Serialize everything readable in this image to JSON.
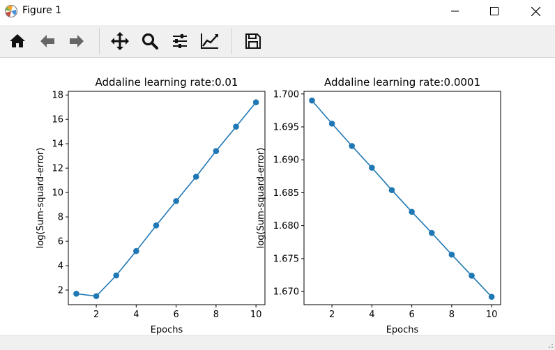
{
  "window": {
    "title": "Figure 1"
  },
  "toolbar": {
    "buttons": [
      {
        "name": "home-icon"
      },
      {
        "name": "back-icon"
      },
      {
        "name": "forward-icon"
      },
      {
        "name": "pan-icon"
      },
      {
        "name": "zoom-icon"
      },
      {
        "name": "subplots-icon"
      },
      {
        "name": "edit-axis-icon"
      },
      {
        "name": "save-icon"
      }
    ]
  },
  "colors": {
    "series": "#1f77b4"
  },
  "chart_data": [
    {
      "type": "line",
      "title": "Addaline learning rate:0.01",
      "xlabel": "Epochs",
      "ylabel": "log(Sum-squard-error)",
      "x": [
        1,
        2,
        3,
        4,
        5,
        6,
        7,
        8,
        9,
        10
      ],
      "series": [
        {
          "values": [
            1.7,
            1.5,
            3.2,
            5.2,
            7.3,
            9.3,
            11.3,
            13.4,
            15.4,
            17.4
          ]
        }
      ],
      "xlim": [
        0.6,
        10.45
      ],
      "ylim": [
        0.8,
        18.3
      ],
      "xticks": [
        2,
        4,
        6,
        8,
        10
      ],
      "yticks": [
        2,
        4,
        6,
        8,
        10,
        12,
        14,
        16,
        18
      ],
      "ytick_labels": [
        "2",
        "4",
        "6",
        "8",
        "10",
        "12",
        "14",
        "16",
        "18"
      ],
      "grid": false
    },
    {
      "type": "line",
      "title": "Addaline learning rate:0.0001",
      "xlabel": "Epochs",
      "ylabel": "log(Sum-squard-error)",
      "x": [
        1,
        2,
        3,
        4,
        5,
        6,
        7,
        8,
        9,
        10
      ],
      "series": [
        {
          "values": [
            1.699,
            1.6955,
            1.6921,
            1.6888,
            1.6854,
            1.6821,
            1.6789,
            1.6756,
            1.6724,
            1.6692
          ]
        }
      ],
      "xlim": [
        0.6,
        10.45
      ],
      "ylim": [
        1.668,
        1.7004
      ],
      "xticks": [
        2,
        4,
        6,
        8,
        10
      ],
      "yticks": [
        1.67,
        1.675,
        1.68,
        1.685,
        1.69,
        1.695,
        1.7
      ],
      "ytick_labels": [
        "1.670",
        "1.675",
        "1.680",
        "1.685",
        "1.690",
        "1.695",
        "1.700"
      ],
      "grid": false
    }
  ]
}
